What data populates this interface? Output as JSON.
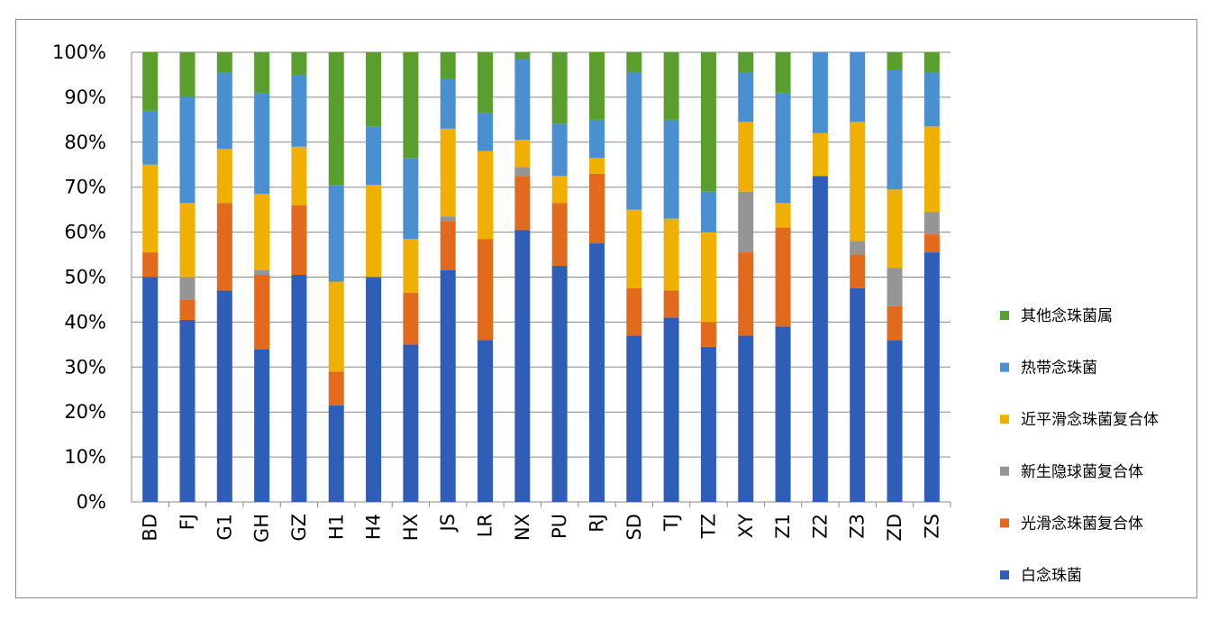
{
  "chart_data": {
    "type": "bar",
    "stacked": true,
    "percent_stacked": true,
    "title": "",
    "xlabel": "",
    "ylabel": "",
    "ylim": [
      0,
      100
    ],
    "y_ticks": [
      "0%",
      "10%",
      "20%",
      "30%",
      "40%",
      "50%",
      "60%",
      "70%",
      "80%",
      "90%",
      "100%"
    ],
    "grid": true,
    "legend_position": "right",
    "categories": [
      "BD",
      "FJ",
      "G1",
      "GH",
      "GZ",
      "H1",
      "H4",
      "HX",
      "JS",
      "LR",
      "NX",
      "PU",
      "RJ",
      "SD",
      "TJ",
      "TZ",
      "XY",
      "Z1",
      "Z2",
      "Z3",
      "ZD",
      "ZS"
    ],
    "series": [
      {
        "name": "白念珠菌",
        "color": "#2e5eb8",
        "values": [
          50,
          40.5,
          47,
          34,
          50.5,
          21.5,
          50,
          35,
          51.5,
          36,
          60.5,
          52.5,
          57.5,
          37,
          41,
          34.5,
          37,
          39,
          72.5,
          47.5,
          36,
          55.5
        ]
      },
      {
        "name": "光滑念珠菌复合体",
        "color": "#e26a1d",
        "values": [
          5.5,
          4.5,
          19.5,
          16.5,
          15.5,
          7.5,
          0,
          11.5,
          11,
          22.5,
          12,
          14,
          15.5,
          10.5,
          6,
          5.5,
          18.5,
          22,
          0,
          7.5,
          7.5,
          4
        ]
      },
      {
        "name": "新生隐球菌复合体",
        "color": "#959595",
        "values": [
          0,
          5,
          0,
          1,
          0,
          0,
          0,
          0,
          1,
          0,
          2,
          0,
          0,
          0,
          0,
          0,
          13.5,
          0,
          0,
          3,
          8.5,
          5
        ]
      },
      {
        "name": "近平滑念珠菌复合体",
        "color": "#f0b000",
        "values": [
          19.5,
          16.5,
          12,
          17,
          13,
          20,
          20.5,
          12,
          19.5,
          19.5,
          6,
          6,
          3.5,
          17.5,
          16,
          20,
          15.5,
          5.5,
          9.5,
          26.5,
          17.5,
          19
        ]
      },
      {
        "name": "热带念珠菌",
        "color": "#4a8fd0",
        "values": [
          12,
          23.5,
          17,
          22.5,
          16,
          21.5,
          13,
          18,
          11,
          8.5,
          18,
          11.5,
          8.5,
          30.5,
          22,
          9,
          11,
          24.5,
          18,
          15.5,
          26.5,
          12
        ]
      },
      {
        "name": "其他念珠菌属",
        "color": "#5a9e2e",
        "values": [
          13,
          10,
          4.5,
          9,
          5,
          29.5,
          16.5,
          23.5,
          6,
          13.5,
          1.5,
          16,
          15,
          4.5,
          15,
          31,
          4.5,
          9,
          0,
          0,
          4,
          4.5
        ]
      }
    ],
    "legend_order": [
      "其他念珠菌属",
      "热带念珠菌",
      "近平滑念珠菌复合体",
      "新生隐球菌复合体",
      "光滑念珠菌复合体",
      "白念珠菌"
    ]
  }
}
